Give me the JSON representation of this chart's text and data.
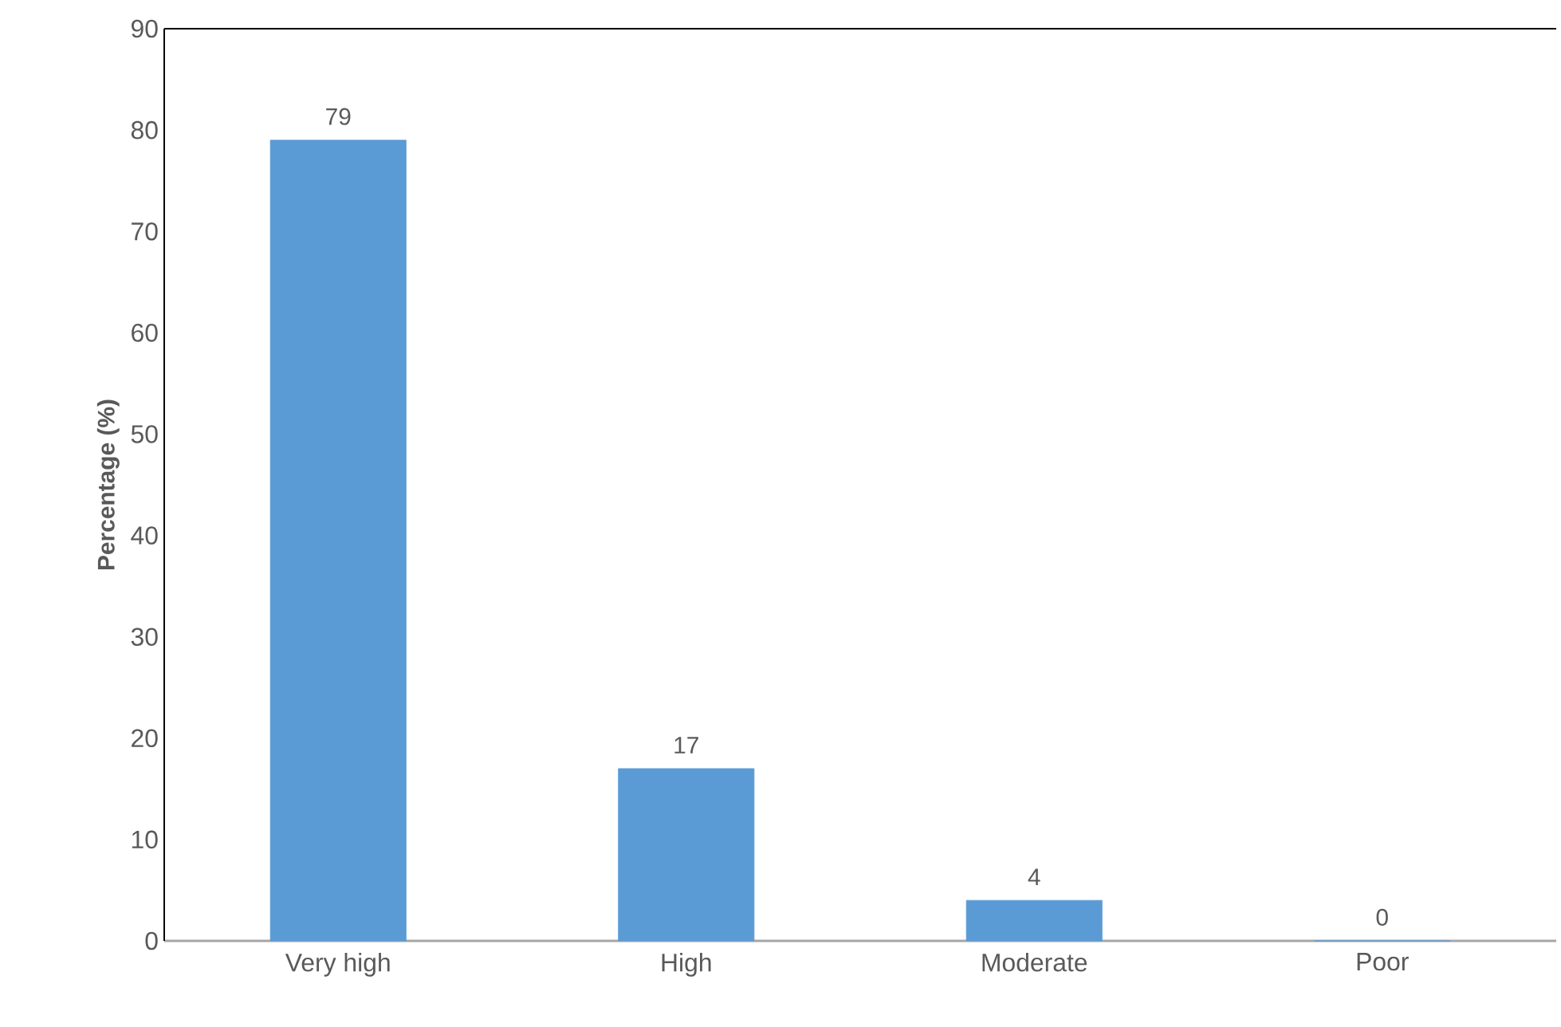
{
  "chart_data": {
    "type": "bar",
    "ylabel": "Percentage (%)",
    "categories": [
      "Very high",
      "High",
      "Moderate",
      "Poor"
    ],
    "values": [
      79,
      17,
      4,
      0
    ],
    "color": "#5b9bd5",
    "ylim": [
      0,
      90
    ],
    "yticks": [
      0,
      10,
      20,
      30,
      40,
      50,
      60,
      70,
      80,
      90
    ],
    "data_labels": true
  }
}
